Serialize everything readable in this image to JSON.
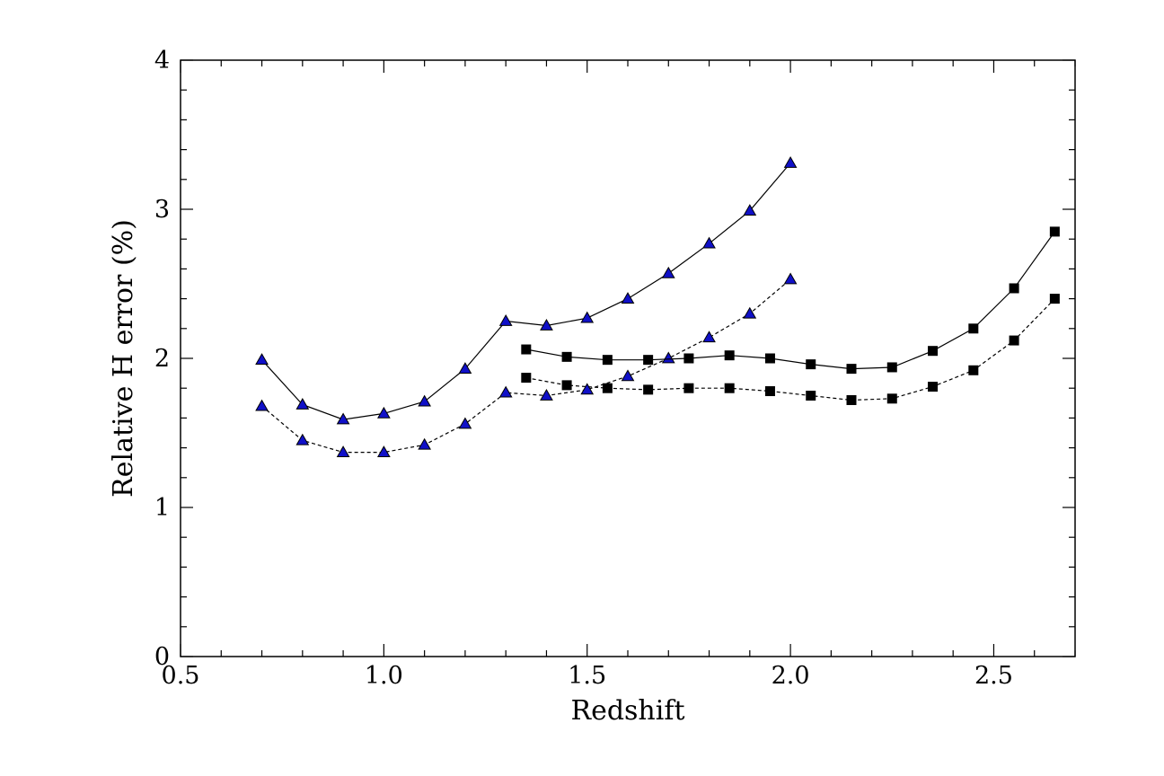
{
  "chart_data": {
    "type": "line",
    "xlabel": "Redshift",
    "ylabel": "Relative H error (%)",
    "xlim": [
      0.5,
      2.7
    ],
    "ylim": [
      0,
      4
    ],
    "xticks": [
      "0.5",
      "1.0",
      "1.5",
      "2.0",
      "2.5"
    ],
    "yticks": [
      "0",
      "1",
      "2",
      "3",
      "4"
    ],
    "grid": false,
    "series": [
      {
        "marker": "triangle",
        "line": "solid",
        "color": "#1010c8",
        "x": [
          0.7,
          0.8,
          0.9,
          1.0,
          1.1,
          1.2,
          1.3,
          1.4,
          1.5,
          1.6,
          1.7,
          1.8,
          1.9,
          2.0
        ],
        "y": [
          1.99,
          1.69,
          1.59,
          1.63,
          1.71,
          1.93,
          2.25,
          2.22,
          2.27,
          2.4,
          2.57,
          2.77,
          2.99,
          3.31
        ]
      },
      {
        "marker": "triangle",
        "line": "dashed",
        "color": "#1010c8",
        "x": [
          0.7,
          0.8,
          0.9,
          1.0,
          1.1,
          1.2,
          1.3,
          1.4,
          1.5,
          1.6,
          1.7,
          1.8,
          1.9,
          2.0
        ],
        "y": [
          1.68,
          1.45,
          1.37,
          1.37,
          1.42,
          1.56,
          1.77,
          1.75,
          1.79,
          1.88,
          2.0,
          2.14,
          2.3,
          2.53
        ]
      },
      {
        "marker": "square",
        "line": "solid",
        "color": "#000000",
        "x": [
          1.35,
          1.45,
          1.55,
          1.65,
          1.75,
          1.85,
          1.95,
          2.05,
          2.15,
          2.25,
          2.35,
          2.45,
          2.55,
          2.65
        ],
        "y": [
          2.06,
          2.01,
          1.99,
          1.99,
          2.0,
          2.02,
          2.0,
          1.96,
          1.93,
          1.94,
          2.05,
          2.2,
          2.47,
          2.85
        ]
      },
      {
        "marker": "square",
        "line": "dashed",
        "color": "#000000",
        "x": [
          1.35,
          1.45,
          1.55,
          1.65,
          1.75,
          1.85,
          1.95,
          2.05,
          2.15,
          2.25,
          2.35,
          2.45,
          2.55,
          2.65
        ],
        "y": [
          1.87,
          1.82,
          1.8,
          1.79,
          1.8,
          1.8,
          1.78,
          1.75,
          1.72,
          1.73,
          1.81,
          1.92,
          2.12,
          2.4
        ]
      }
    ]
  }
}
